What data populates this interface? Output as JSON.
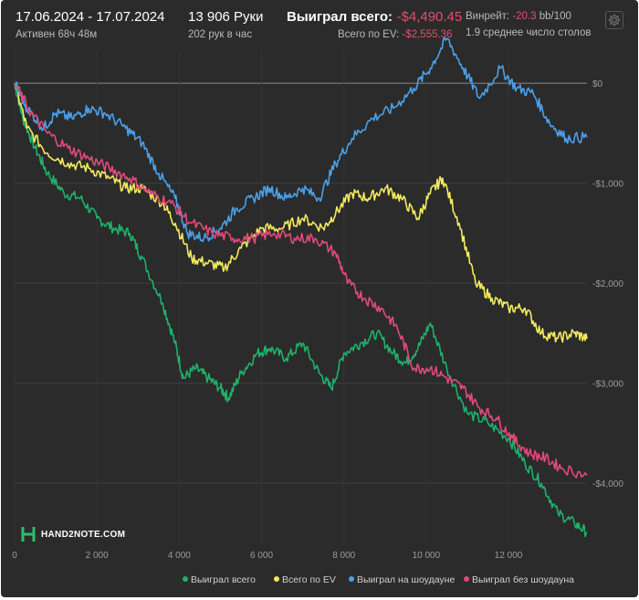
{
  "header": {
    "date_range": "17.06.2024 - 17.07.2024",
    "active": "Активен 68ч 48м",
    "hands": "13 906 Руки",
    "hands_per_hour": "202 рук в час",
    "won_total_label": "Выиграл всего:",
    "won_total_value": "-$4,490.45",
    "ev_label": "Всего по EV:",
    "ev_value": "-$2,555.36",
    "winrate_label": "Винрейт:",
    "winrate_value": "-20.3",
    "winrate_suffix": "bb/100",
    "avg_tables": "1.9 среднее число столов"
  },
  "logo_text": "HAND2NOTE.COM",
  "icons": {
    "settings": "gear-icon",
    "logo": "hand2note-logo-icon"
  },
  "colors": {
    "won_total": "#1fb16b",
    "ev": "#f2ea5c",
    "showdown": "#4aa0e8",
    "non_showdown": "#e04a7a",
    "negative": "#e0506f"
  },
  "chart_data": {
    "type": "line",
    "x_ticks": [
      0,
      2000,
      4000,
      6000,
      8000,
      10000,
      12000
    ],
    "x_tick_labels": [
      "0",
      "2 000",
      "4 000",
      "6 000",
      "8 000",
      "10 000",
      "12 000"
    ],
    "y_ticks": [
      0,
      -1000,
      -2000,
      -3000,
      -4000
    ],
    "y_tick_labels": [
      "$0",
      "-$1,000",
      "-$2,000",
      "-$3,000",
      "-$4,000"
    ],
    "xlim": [
      0,
      13906
    ],
    "ylim": [
      -4620,
      330
    ],
    "grid": true,
    "legend_position": "bottom-right",
    "series": [
      {
        "name": "Выиграл всего",
        "color_key": "won_total",
        "points": [
          [
            0,
            0
          ],
          [
            200,
            -350
          ],
          [
            500,
            -650
          ],
          [
            800,
            -900
          ],
          [
            1200,
            -1100
          ],
          [
            1600,
            -1150
          ],
          [
            2000,
            -1350
          ],
          [
            2400,
            -1450
          ],
          [
            2800,
            -1500
          ],
          [
            3100,
            -1750
          ],
          [
            3600,
            -2200
          ],
          [
            3900,
            -2600
          ],
          [
            4100,
            -2950
          ],
          [
            4400,
            -2850
          ],
          [
            4700,
            -2950
          ],
          [
            5000,
            -3050
          ],
          [
            5200,
            -3150
          ],
          [
            5500,
            -2900
          ],
          [
            5900,
            -2700
          ],
          [
            6200,
            -2650
          ],
          [
            6600,
            -2750
          ],
          [
            7000,
            -2600
          ],
          [
            7400,
            -2900
          ],
          [
            7700,
            -3050
          ],
          [
            8000,
            -2700
          ],
          [
            8400,
            -2600
          ],
          [
            8800,
            -2500
          ],
          [
            9200,
            -2700
          ],
          [
            9500,
            -2800
          ],
          [
            9800,
            -2650
          ],
          [
            10100,
            -2400
          ],
          [
            10500,
            -2850
          ],
          [
            11000,
            -3300
          ],
          [
            11500,
            -3400
          ],
          [
            12000,
            -3550
          ],
          [
            12400,
            -3800
          ],
          [
            12800,
            -4000
          ],
          [
            13200,
            -4300
          ],
          [
            13600,
            -4400
          ],
          [
            13906,
            -4490
          ]
        ]
      },
      {
        "name": "Всего по EV",
        "color_key": "ev",
        "points": [
          [
            0,
            0
          ],
          [
            300,
            -450
          ],
          [
            800,
            -700
          ],
          [
            1300,
            -800
          ],
          [
            1800,
            -850
          ],
          [
            2300,
            -950
          ],
          [
            2700,
            -1050
          ],
          [
            3100,
            -1050
          ],
          [
            3600,
            -1200
          ],
          [
            3900,
            -1400
          ],
          [
            4300,
            -1750
          ],
          [
            4700,
            -1800
          ],
          [
            5100,
            -1850
          ],
          [
            5500,
            -1650
          ],
          [
            6000,
            -1450
          ],
          [
            6500,
            -1450
          ],
          [
            7000,
            -1350
          ],
          [
            7500,
            -1450
          ],
          [
            7800,
            -1300
          ],
          [
            8200,
            -1100
          ],
          [
            8600,
            -1150
          ],
          [
            9000,
            -1050
          ],
          [
            9400,
            -1150
          ],
          [
            9800,
            -1350
          ],
          [
            10100,
            -1100
          ],
          [
            10400,
            -950
          ],
          [
            10800,
            -1400
          ],
          [
            11200,
            -2000
          ],
          [
            11600,
            -2150
          ],
          [
            12000,
            -2250
          ],
          [
            12400,
            -2250
          ],
          [
            12800,
            -2500
          ],
          [
            13200,
            -2550
          ],
          [
            13600,
            -2500
          ],
          [
            13906,
            -2555
          ]
        ]
      },
      {
        "name": "Выиграл на шоудауне",
        "color_key": "showdown",
        "points": [
          [
            0,
            0
          ],
          [
            300,
            -250
          ],
          [
            700,
            -450
          ],
          [
            1000,
            -300
          ],
          [
            1400,
            -350
          ],
          [
            1800,
            -250
          ],
          [
            2200,
            -300
          ],
          [
            2700,
            -450
          ],
          [
            3100,
            -600
          ],
          [
            3500,
            -900
          ],
          [
            3900,
            -1150
          ],
          [
            4200,
            -1500
          ],
          [
            4600,
            -1550
          ],
          [
            5000,
            -1450
          ],
          [
            5400,
            -1250
          ],
          [
            5800,
            -1150
          ],
          [
            6200,
            -1050
          ],
          [
            6600,
            -1150
          ],
          [
            7000,
            -1050
          ],
          [
            7400,
            -1150
          ],
          [
            7800,
            -800
          ],
          [
            8200,
            -550
          ],
          [
            8700,
            -350
          ],
          [
            9200,
            -250
          ],
          [
            9700,
            -50
          ],
          [
            10100,
            150
          ],
          [
            10500,
            450
          ],
          [
            10900,
            150
          ],
          [
            11300,
            -150
          ],
          [
            11800,
            150
          ],
          [
            12200,
            -50
          ],
          [
            12600,
            -100
          ],
          [
            13000,
            -400
          ],
          [
            13400,
            -550
          ],
          [
            13906,
            -540
          ]
        ]
      },
      {
        "name": "Выиграл без шоудауна",
        "color_key": "non_showdown",
        "points": [
          [
            0,
            0
          ],
          [
            400,
            -300
          ],
          [
            800,
            -500
          ],
          [
            1300,
            -650
          ],
          [
            1800,
            -750
          ],
          [
            2300,
            -850
          ],
          [
            2800,
            -950
          ],
          [
            3300,
            -1100
          ],
          [
            3800,
            -1200
          ],
          [
            4300,
            -1400
          ],
          [
            4800,
            -1500
          ],
          [
            5300,
            -1550
          ],
          [
            5800,
            -1550
          ],
          [
            6300,
            -1500
          ],
          [
            6800,
            -1550
          ],
          [
            7300,
            -1550
          ],
          [
            7800,
            -1700
          ],
          [
            8100,
            -2000
          ],
          [
            8500,
            -2150
          ],
          [
            8900,
            -2250
          ],
          [
            9300,
            -2450
          ],
          [
            9700,
            -2850
          ],
          [
            10100,
            -2850
          ],
          [
            10500,
            -2950
          ],
          [
            10900,
            -3050
          ],
          [
            11300,
            -3250
          ],
          [
            11700,
            -3350
          ],
          [
            12100,
            -3550
          ],
          [
            12500,
            -3700
          ],
          [
            12900,
            -3750
          ],
          [
            13300,
            -3850
          ],
          [
            13906,
            -3920
          ]
        ]
      }
    ]
  }
}
